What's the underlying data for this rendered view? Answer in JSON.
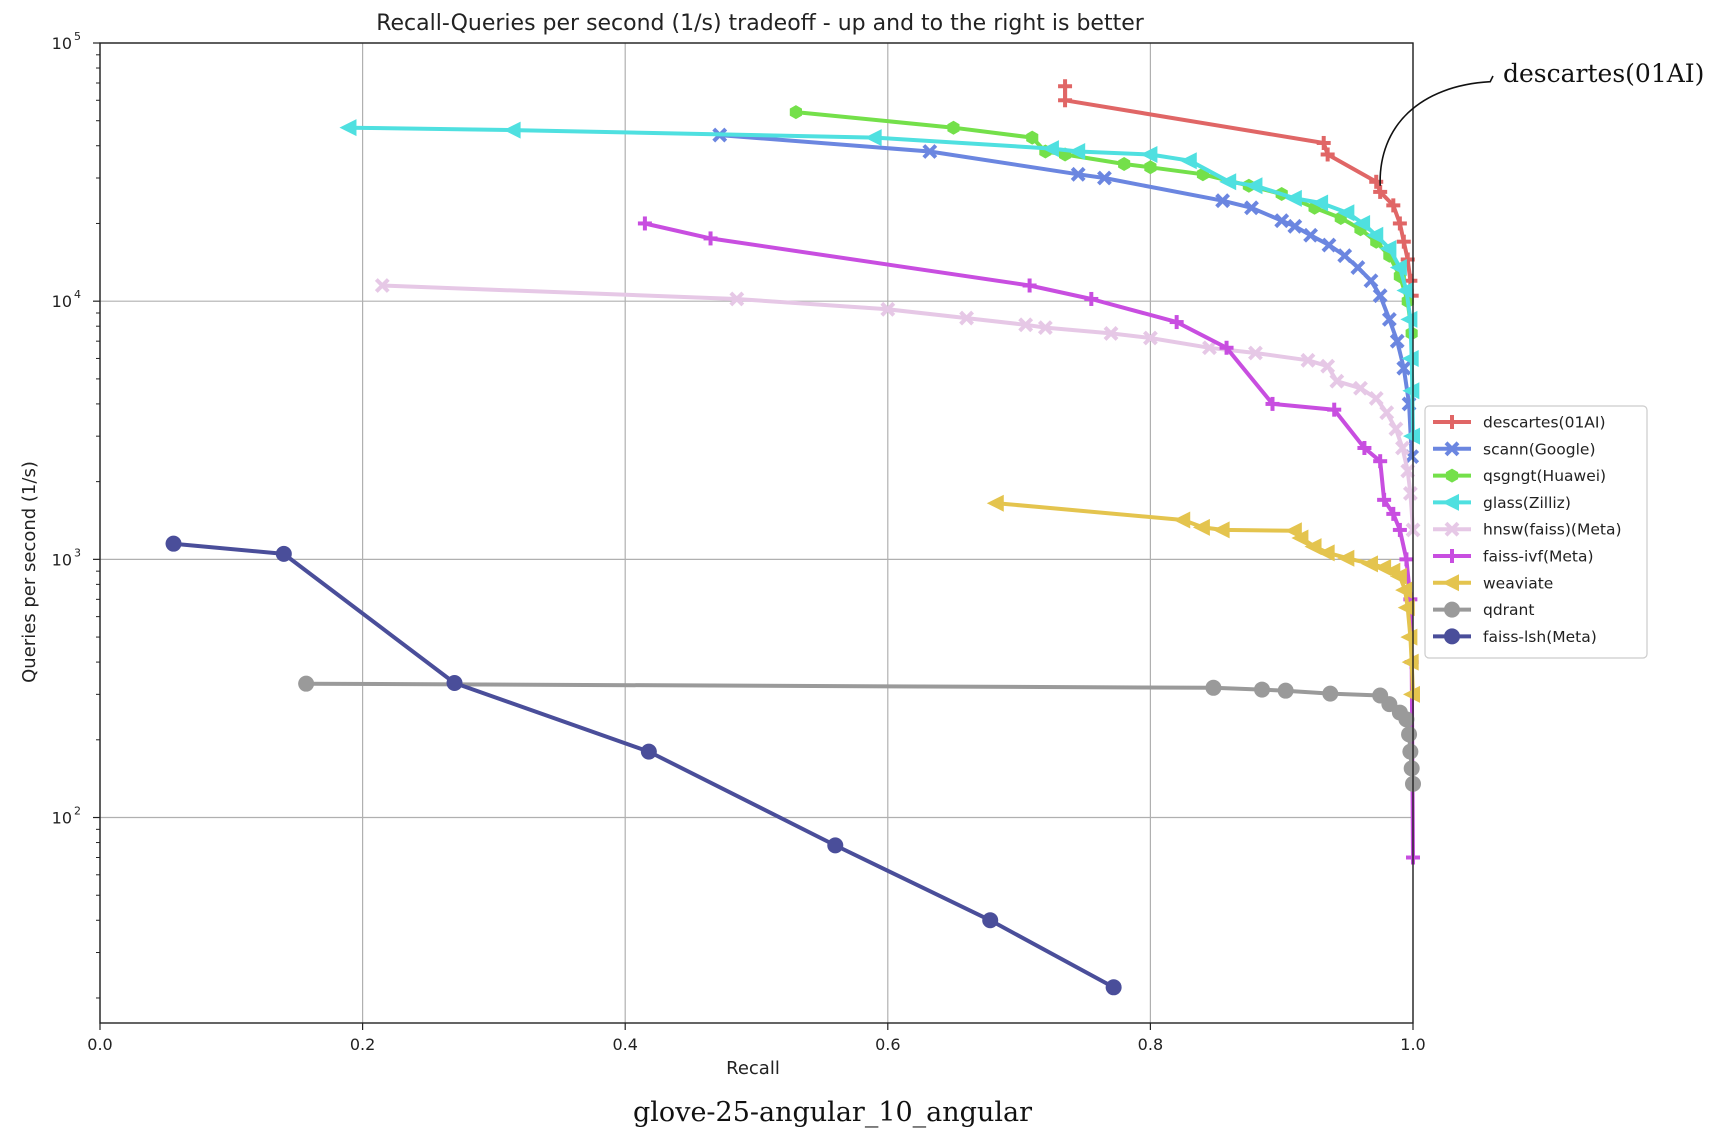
{
  "caption": "glove-25-angular_10_angular",
  "colors": {
    "descartes(01AI)": "#e06666",
    "scann(Google)": "#6b86e0",
    "qsgngt(Huawei)": "#74e04a",
    "glass(Zilliz)": "#4fe0e0",
    "hnsw(faiss)(Meta)": "#e6c8e6",
    "faiss-ivf(Meta)": "#c84ee0",
    "weaviate": "#e4c44e",
    "qdrant": "#9a9a9a",
    "faiss-lsh(Meta)": "#4a4e9a"
  },
  "chart_data": {
    "type": "line",
    "title": "Recall-Queries per second (1/s) tradeoff - up and to the right is better",
    "xlabel": "Recall",
    "ylabel": "Queries per second (1/s)",
    "xlim": [
      0.0,
      1.0
    ],
    "ylim": [
      16,
      100000
    ],
    "yscale": "log",
    "grid": true,
    "legend_position": "center-right outside",
    "xticks": [
      "0.0",
      "0.2",
      "0.4",
      "0.6",
      "0.8",
      "1.0"
    ],
    "yticks": [
      {
        "base": "10",
        "exp": "2",
        "value": 100
      },
      {
        "base": "10",
        "exp": "3",
        "value": 1000
      },
      {
        "base": "10",
        "exp": "4",
        "value": 10000
      },
      {
        "base": "10",
        "exp": "5",
        "value": 100000
      }
    ],
    "annotation": {
      "text": "descartes(01AI)",
      "points_to": [
        0.975,
        28000
      ]
    },
    "series": [
      {
        "name": "descartes(01AI)",
        "marker": "plus",
        "points": [
          [
            0.735,
            68000
          ],
          [
            0.735,
            60000
          ],
          [
            0.932,
            41000
          ],
          [
            0.935,
            37000
          ],
          [
            0.972,
            29000
          ],
          [
            0.975,
            26500
          ],
          [
            0.985,
            23500
          ],
          [
            0.99,
            20000
          ],
          [
            0.993,
            17000
          ],
          [
            0.996,
            14500
          ],
          [
            0.998,
            12000
          ],
          [
            0.999,
            10500
          ]
        ]
      },
      {
        "name": "scann(Google)",
        "marker": "x",
        "points": [
          [
            0.472,
            44000
          ],
          [
            0.632,
            38000
          ],
          [
            0.745,
            31000
          ],
          [
            0.765,
            30000
          ],
          [
            0.855,
            24500
          ],
          [
            0.877,
            23000
          ],
          [
            0.9,
            20500
          ],
          [
            0.91,
            19500
          ],
          [
            0.922,
            18000
          ],
          [
            0.936,
            16500
          ],
          [
            0.948,
            15000
          ],
          [
            0.958,
            13500
          ],
          [
            0.968,
            12000
          ],
          [
            0.975,
            10500
          ],
          [
            0.982,
            8500
          ],
          [
            0.988,
            7000
          ],
          [
            0.993,
            5500
          ],
          [
            0.997,
            4000
          ],
          [
            0.999,
            2500
          ]
        ]
      },
      {
        "name": "qsgngt(Huawei)",
        "marker": "hexagon",
        "points": [
          [
            0.53,
            54000
          ],
          [
            0.65,
            47000
          ],
          [
            0.71,
            43000
          ],
          [
            0.72,
            38000
          ],
          [
            0.735,
            37000
          ],
          [
            0.78,
            34000
          ],
          [
            0.8,
            33000
          ],
          [
            0.84,
            31000
          ],
          [
            0.875,
            28000
          ],
          [
            0.9,
            26000
          ],
          [
            0.925,
            23000
          ],
          [
            0.945,
            21000
          ],
          [
            0.96,
            19000
          ],
          [
            0.972,
            17000
          ],
          [
            0.982,
            15000
          ],
          [
            0.99,
            12500
          ],
          [
            0.996,
            10000
          ],
          [
            0.999,
            7500
          ]
        ]
      },
      {
        "name": "glass(Zilliz)",
        "marker": "triangle-left",
        "points": [
          [
            0.19,
            47000
          ],
          [
            0.315,
            46000
          ],
          [
            0.59,
            43000
          ],
          [
            0.725,
            39000
          ],
          [
            0.745,
            38000
          ],
          [
            0.8,
            37000
          ],
          [
            0.83,
            35000
          ],
          [
            0.86,
            29000
          ],
          [
            0.88,
            28000
          ],
          [
            0.91,
            25000
          ],
          [
            0.93,
            24000
          ],
          [
            0.95,
            22000
          ],
          [
            0.962,
            20000
          ],
          [
            0.972,
            18000
          ],
          [
            0.982,
            16000
          ],
          [
            0.99,
            13500
          ],
          [
            0.995,
            11000
          ],
          [
            0.998,
            8500
          ],
          [
            0.999,
            6000
          ],
          [
            0.9995,
            4500
          ],
          [
            1.0,
            3000
          ]
        ]
      },
      {
        "name": "hnsw(faiss)(Meta)",
        "marker": "x",
        "points": [
          [
            0.215,
            11500
          ],
          [
            0.485,
            10200
          ],
          [
            0.6,
            9300
          ],
          [
            0.66,
            8600
          ],
          [
            0.705,
            8100
          ],
          [
            0.72,
            7900
          ],
          [
            0.77,
            7500
          ],
          [
            0.8,
            7200
          ],
          [
            0.845,
            6600
          ],
          [
            0.88,
            6300
          ],
          [
            0.92,
            5900
          ],
          [
            0.935,
            5600
          ],
          [
            0.942,
            4900
          ],
          [
            0.96,
            4600
          ],
          [
            0.972,
            4200
          ],
          [
            0.98,
            3700
          ],
          [
            0.987,
            3200
          ],
          [
            0.992,
            2700
          ],
          [
            0.996,
            2200
          ],
          [
            0.998,
            1800
          ],
          [
            1.0,
            1300
          ]
        ]
      },
      {
        "name": "faiss-ivf(Meta)",
        "marker": "plus",
        "points": [
          [
            0.415,
            20000
          ],
          [
            0.465,
            17500
          ],
          [
            0.708,
            11500
          ],
          [
            0.755,
            10200
          ],
          [
            0.82,
            8300
          ],
          [
            0.858,
            6600
          ],
          [
            0.893,
            4000
          ],
          [
            0.94,
            3800
          ],
          [
            0.963,
            2700
          ],
          [
            0.975,
            2400
          ],
          [
            0.978,
            1700
          ],
          [
            0.985,
            1500
          ],
          [
            0.99,
            1300
          ],
          [
            0.995,
            1000
          ],
          [
            0.998,
            700
          ],
          [
            0.999,
            400
          ],
          [
            1.0,
            70
          ]
        ]
      },
      {
        "name": "weaviate",
        "marker": "triangle-left",
        "points": [
          [
            0.683,
            1650
          ],
          [
            0.825,
            1420
          ],
          [
            0.84,
            1330
          ],
          [
            0.855,
            1300
          ],
          [
            0.91,
            1290
          ],
          [
            0.915,
            1210
          ],
          [
            0.925,
            1120
          ],
          [
            0.935,
            1060
          ],
          [
            0.95,
            1010
          ],
          [
            0.968,
            960
          ],
          [
            0.978,
            930
          ],
          [
            0.985,
            900
          ],
          [
            0.99,
            860
          ],
          [
            0.994,
            760
          ],
          [
            0.996,
            650
          ],
          [
            0.998,
            500
          ],
          [
            0.999,
            400
          ],
          [
            1.0,
            300
          ]
        ]
      },
      {
        "name": "qdrant",
        "marker": "circle",
        "points": [
          [
            0.157,
            330
          ],
          [
            0.848,
            318
          ],
          [
            0.885,
            313
          ],
          [
            0.903,
            310
          ],
          [
            0.937,
            302
          ],
          [
            0.975,
            297
          ],
          [
            0.982,
            275
          ],
          [
            0.99,
            255
          ],
          [
            0.995,
            240
          ],
          [
            0.997,
            210
          ],
          [
            0.998,
            180
          ],
          [
            0.999,
            155
          ],
          [
            1.0,
            135
          ]
        ]
      },
      {
        "name": "faiss-lsh(Meta)",
        "marker": "circle",
        "points": [
          [
            0.056,
            1150
          ],
          [
            0.14,
            1050
          ],
          [
            0.27,
            332
          ],
          [
            0.418,
            180
          ],
          [
            0.56,
            78
          ],
          [
            0.678,
            40
          ],
          [
            0.772,
            22
          ]
        ]
      }
    ]
  }
}
